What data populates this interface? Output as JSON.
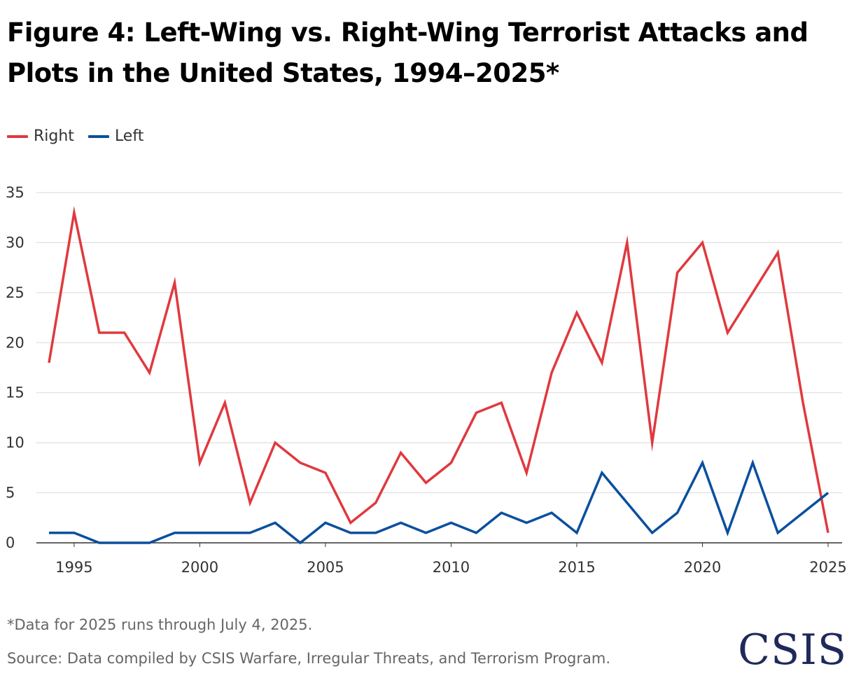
{
  "title": "Figure 4: Left-Wing vs. Right-Wing Terrorist Attacks and Plots in the United States, 1994–2025*",
  "footnote": "*Data for 2025 runs through July 4, 2025.",
  "source": "Source: Data compiled by CSIS Warfare, Irregular Threats, and Terrorism Program.",
  "logo_text": "CSIS",
  "colors": {
    "right": "#e0393e",
    "left": "#0a4f9e",
    "grid": "#d9d9d9",
    "axis": "#333333"
  },
  "chart_data": {
    "type": "line",
    "title": "Figure 4: Left-Wing vs. Right-Wing Terrorist Attacks and Plots in the United States, 1994–2025*",
    "xlabel": "",
    "ylabel": "",
    "x": [
      1994,
      1995,
      1996,
      1997,
      1998,
      1999,
      2000,
      2001,
      2002,
      2003,
      2004,
      2005,
      2006,
      2007,
      2008,
      2009,
      2010,
      2011,
      2012,
      2013,
      2014,
      2015,
      2016,
      2017,
      2018,
      2019,
      2020,
      2021,
      2022,
      2023,
      2024,
      2025
    ],
    "xticks": [
      1995,
      2000,
      2005,
      2010,
      2015,
      2020,
      2025
    ],
    "xlim": [
      1994,
      2025
    ],
    "ylim": [
      0,
      35
    ],
    "yticks": [
      0,
      5,
      10,
      15,
      20,
      25,
      30,
      35
    ],
    "grid": true,
    "legend_position": "top-left",
    "series": [
      {
        "name": "Right",
        "color": "#e0393e",
        "values": [
          18,
          33,
          21,
          21,
          17,
          26,
          8,
          14,
          4,
          10,
          8,
          7,
          2,
          4,
          9,
          6,
          8,
          13,
          14,
          7,
          17,
          23,
          18,
          30,
          10,
          27,
          30,
          21,
          25,
          29,
          14,
          1
        ]
      },
      {
        "name": "Left",
        "color": "#0a4f9e",
        "values": [
          1,
          1,
          0,
          0,
          0,
          1,
          1,
          1,
          1,
          2,
          0,
          2,
          1,
          1,
          2,
          1,
          2,
          1,
          3,
          2,
          3,
          1,
          7,
          4,
          1,
          3,
          8,
          1,
          8,
          1,
          3,
          5
        ]
      }
    ]
  }
}
